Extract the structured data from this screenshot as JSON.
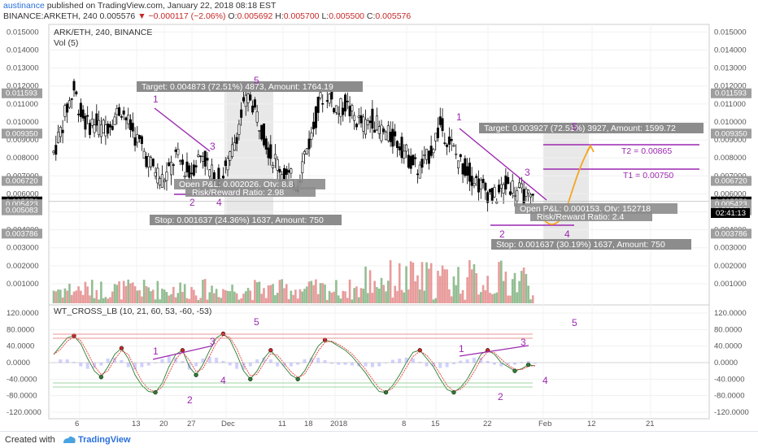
{
  "header": {
    "user": "austinance",
    "published": "published on TradingView.com, January 22, 2018 08:18 EST",
    "symbol": "BINANCE:ARKETH, 240",
    "last": "0.005576",
    "change": "−0.000117 (−2.06%)",
    "ohlc": [
      {
        "label": "O:",
        "value": "0.005692"
      },
      {
        "label": "H:",
        "value": "0.005700"
      },
      {
        "label": "L:",
        "value": "0.005500"
      },
      {
        "label": "C:",
        "value": "0.005576"
      }
    ]
  },
  "main_pane": {
    "title": "ARK/ETH, 240, BINANCE",
    "vol_label": "Vol (5)",
    "y_ticks": [
      "0.015000",
      "0.014000",
      "0.013000",
      "0.012000",
      "0.011000",
      "0.010000",
      "0.009000",
      "0.008000",
      "0.007000",
      "0.006000",
      "0.005000",
      "0.004000",
      "0.003000",
      "0.002000",
      "0.001000"
    ],
    "left_price_labels": [
      "0.011593",
      "0.009350",
      "0.006720",
      "0.005576",
      "0.005423",
      "0.005083",
      "0.003786"
    ],
    "right_price_labels": [
      "0.011593",
      "0.009350",
      "0.006720",
      "0.005576",
      "0.005423",
      "0.005083",
      "0.003786"
    ],
    "countdown": "02:41:13",
    "target_box_1": "Target: 0.004873 (72.51%) 4873, Amount: 1764.19",
    "stop_box_1": "Stop: 0.001637 (24.36%) 1637, Amount: 750",
    "pnl_box_1a": "Open P&L: 0.002026, Qty: 8.8",
    "pnl_box_1b": "Risk/Reward Ratio: 2.98",
    "target_box_2": "Target: 0.003927 (72.51%) 3927, Amount: 1599.72",
    "stop_box_2": "Stop: 0.001637 (30.19%) 1637, Amount: 750",
    "pnl_box_2a": "Open P&L: 0.000153, Qty: 152718",
    "pnl_box_2b": "Risk/Reward Ratio: 2.4",
    "t1": "T1 = 0.00750",
    "t2": "T2 = 0.00865",
    "wave_labels": [
      "1",
      "2",
      "3",
      "4",
      "5",
      "1",
      "2",
      "3",
      "4",
      "5"
    ]
  },
  "indicator_pane": {
    "title": "WT_CROSS_LB (10, 21, 60, 53, -60, -53)",
    "y_ticks": [
      "120.0000",
      "80.0000",
      "40.0000",
      "0.0000",
      "-40.0000",
      "-80.0000",
      "-120.0000"
    ],
    "wave_labels": [
      "1",
      "2",
      "3",
      "4",
      "5",
      "1",
      "2",
      "3",
      "4",
      "5"
    ]
  },
  "x_axis": {
    "ticks": [
      "6",
      "13",
      "20",
      "27",
      "Dec",
      "11",
      "18",
      "2018",
      "8",
      "15",
      "22",
      "Feb",
      "12",
      "21"
    ]
  },
  "footer": {
    "created_with": "Created with",
    "brand": "TradingView"
  },
  "colors": {
    "up": "#6fa86f",
    "down": "#e07a7a",
    "candle": "#000000",
    "wave": "#9c27b0",
    "projection": "#f5a623",
    "label_box": "#8c8c8c"
  },
  "chart_data": {
    "type": "candlestick",
    "title": "ARK/ETH, 240, BINANCE",
    "ylabel": "",
    "ylim": [
      0.0005,
      0.0155
    ],
    "price_path": [
      0.0083,
      0.0095,
      0.0108,
      0.0118,
      0.0105,
      0.0098,
      0.01,
      0.0096,
      0.0099,
      0.0103,
      0.0108,
      0.0099,
      0.0092,
      0.0086,
      0.0078,
      0.0073,
      0.0068,
      0.0072,
      0.0081,
      0.0076,
      0.0071,
      0.0078,
      0.0083,
      0.0072,
      0.0068,
      0.0071,
      0.0079,
      0.0094,
      0.0108,
      0.0114,
      0.0103,
      0.0093,
      0.0082,
      0.0077,
      0.0071,
      0.0068,
      0.0066,
      0.0082,
      0.0092,
      0.0108,
      0.0118,
      0.0112,
      0.0106,
      0.011,
      0.0104,
      0.01,
      0.0098,
      0.0102,
      0.0096,
      0.0093,
      0.0091,
      0.0088,
      0.0082,
      0.0077,
      0.0073,
      0.0079,
      0.0088,
      0.0098,
      0.0092,
      0.0084,
      0.0077,
      0.0073,
      0.0069,
      0.0064,
      0.0061,
      0.0058,
      0.0062,
      0.0066,
      0.0063,
      0.006,
      0.0057,
      0.0056
    ],
    "wt_path": [
      20,
      40,
      60,
      65,
      45,
      10,
      -20,
      -35,
      -10,
      20,
      35,
      10,
      -30,
      -55,
      -70,
      -72,
      -50,
      -10,
      20,
      30,
      -10,
      -30,
      -5,
      30,
      60,
      70,
      55,
      20,
      -20,
      -40,
      -20,
      10,
      30,
      10,
      -10,
      -30,
      -40,
      -20,
      10,
      40,
      55,
      50,
      40,
      30,
      15,
      -5,
      -25,
      -50,
      -70,
      -72,
      -55,
      -30,
      0,
      25,
      30,
      10,
      -10,
      -40,
      -65,
      -72,
      -60,
      -40,
      -10,
      20,
      30,
      20,
      0,
      -10,
      -20,
      -15,
      -5,
      -8
    ]
  }
}
